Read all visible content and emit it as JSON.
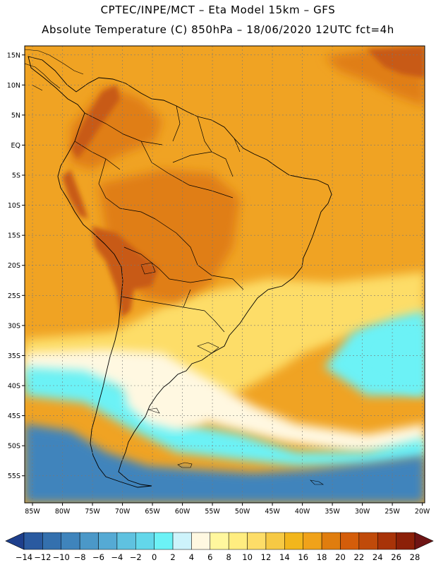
{
  "title_line1": "CPTEC/INPE/MCT –  Eta Model 15km – GFS",
  "title_line2": "Absolute Temperature (C) 850hPa – 18/06/2020 12UTC fct=4h",
  "lat_labels": [
    "15N",
    "10N",
    "5N",
    "EQ",
    "5S",
    "10S",
    "15S",
    "20S",
    "25S",
    "30S",
    "35S",
    "40S",
    "45S",
    "50S",
    "55S"
  ],
  "lat_values": [
    15,
    10,
    5,
    0,
    -5,
    -10,
    -15,
    -20,
    -25,
    -30,
    -35,
    -40,
    -45,
    -50,
    -55
  ],
  "lon_labels": [
    "85W",
    "80W",
    "75W",
    "70W",
    "65W",
    "60W",
    "55W",
    "50W",
    "45W",
    "40W",
    "35W",
    "30W",
    "25W",
    "20W"
  ],
  "lon_values": [
    -85,
    -80,
    -75,
    -70,
    -65,
    -60,
    -55,
    -50,
    -45,
    -40,
    -35,
    -30,
    -25,
    -20
  ],
  "colorbar": {
    "unit": "C",
    "labels": [
      "-14",
      "-12",
      "-10",
      "-8",
      "-6",
      "-4",
      "-2",
      "0",
      "2",
      "4",
      "6",
      "8",
      "10",
      "12",
      "14",
      "16",
      "18",
      "20",
      "22",
      "24",
      "26",
      "28"
    ],
    "colors": [
      "#1e3f8c",
      "#2a5aa0",
      "#3470ae",
      "#3f84bc",
      "#4b98c8",
      "#55aad4",
      "#5fc2e0",
      "#63d7ea",
      "#6cf2f6",
      "#cdf3fb",
      "#fff8e1",
      "#fff79e",
      "#ffed80",
      "#fddd68",
      "#f6c944",
      "#f2b61c",
      "#f0a21a",
      "#e07d0e",
      "#d45d0a",
      "#c04a0a",
      "#a83308",
      "#8c2008",
      "#6e1414"
    ]
  },
  "colors": {
    "land_base": "#efa120",
    "land_warm": "#e07e12",
    "land_hot": "#c85a12",
    "ocean_north": "#f0a323",
    "warm_belt": "#fddd68",
    "cool_band": "#fff8e1",
    "cyan": "#6cf2f6",
    "cold": "#3f84bc",
    "coast": "#000000"
  }
}
